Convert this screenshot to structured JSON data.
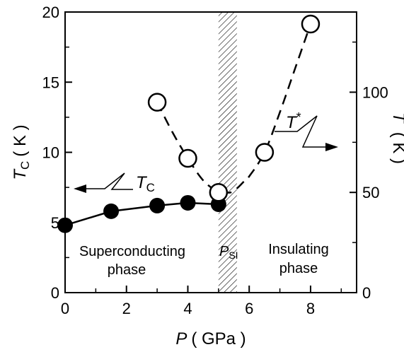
{
  "chart_data": {
    "type": "scatter",
    "xlabel": {
      "var": "P",
      "unit": "( GPa )"
    },
    "ylabel_left": {
      "var": "T",
      "sub": "C",
      "unit": "( K )"
    },
    "ylabel_right": {
      "var": "T",
      "sup": "*",
      "unit": "( K )"
    },
    "xlim": [
      0,
      9.5
    ],
    "ylim_left": [
      0,
      20
    ],
    "ylim_right": [
      0,
      140
    ],
    "x_ticks": [
      0,
      2,
      4,
      6,
      8
    ],
    "y_ticks_left": [
      0,
      5,
      10,
      15,
      20
    ],
    "y_ticks_right": [
      0,
      50,
      100
    ],
    "grid": false,
    "series": [
      {
        "name": "T_C",
        "axis": "left",
        "marker": "filled-circle",
        "line": "solid",
        "x": [
          0,
          1.5,
          3,
          4,
          5
        ],
        "y": [
          4.8,
          5.8,
          6.2,
          6.4,
          6.3
        ]
      },
      {
        "name": "T*",
        "axis": "right",
        "marker": "open-circle",
        "line": "dashed",
        "x": [
          3,
          4,
          5,
          6.5,
          8
        ],
        "y": [
          95,
          67,
          50,
          70,
          134
        ],
        "curve_x": [
          3,
          3.5,
          4,
          4.5,
          5,
          5.2,
          5.4,
          5.6,
          5.8,
          6.0,
          6.5,
          7.0,
          7.5,
          8.0
        ],
        "curve_y": [
          95,
          80,
          67,
          56,
          50,
          50,
          50,
          52,
          55,
          58,
          70,
          90,
          112,
          134
        ]
      }
    ],
    "shaded_band": {
      "x_from": 5.0,
      "x_to": 5.6,
      "pattern": "hatch"
    },
    "annotations": {
      "tc_label": {
        "var": "T",
        "sub": "C"
      },
      "tstar_label": {
        "var": "T",
        "sup": "*"
      },
      "psi_label": {
        "var": "P",
        "sub": "SI"
      },
      "superconducting": [
        "Superconducting",
        "phase"
      ],
      "insulating": [
        "Insulating",
        "phase"
      ]
    }
  }
}
